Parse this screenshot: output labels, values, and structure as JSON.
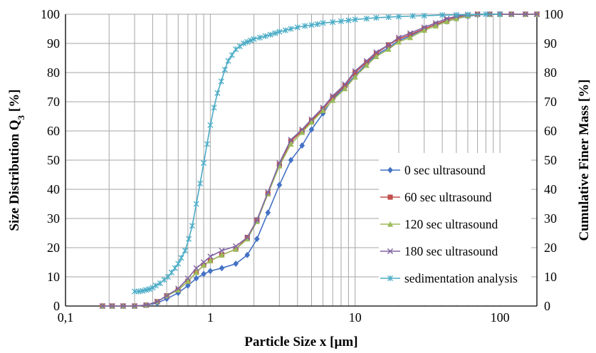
{
  "chart_data": {
    "type": "line",
    "xscale": "log",
    "xlim": [
      0.1,
      180
    ],
    "ylim": [
      0,
      100
    ],
    "grid": "on",
    "legend_position": "bottom-right",
    "xlabel": "Particle Size x [µm]",
    "ylabel_left": "Size Distribution Q",
    "ylabel_left_sub": "3",
    "ylabel_left_suffix": " [%]",
    "ylabel_right": "Cumulative Finer Mass [%]",
    "x_tick_labels": [
      "0,1",
      "1",
      "10",
      "100"
    ],
    "y_tick_labels": [
      "0",
      "10",
      "20",
      "30",
      "40",
      "50",
      "60",
      "70",
      "80",
      "90",
      "100"
    ],
    "series": [
      {
        "name": "0 sec ultrasound",
        "color": "#4472c4",
        "marker": "diamond",
        "x": [
          0.18,
          0.21,
          0.25,
          0.3,
          0.36,
          0.43,
          0.5,
          0.6,
          0.7,
          0.8,
          0.9,
          1.0,
          1.2,
          1.5,
          1.8,
          2.1,
          2.5,
          3.0,
          3.6,
          4.3,
          5.0,
          6.0,
          7.0,
          8.5,
          10,
          12,
          14,
          17,
          20,
          24,
          30,
          36,
          43,
          50,
          60,
          70,
          85,
          100,
          120,
          150,
          180
        ],
        "y": [
          0,
          0,
          0,
          0,
          0.3,
          1,
          2.5,
          4.5,
          7,
          9.5,
          11,
          12,
          13,
          14.5,
          17.5,
          23,
          32,
          41.5,
          50,
          55,
          60.5,
          66,
          71,
          75,
          79,
          83,
          86,
          88.5,
          91,
          92.5,
          95,
          96.5,
          97.5,
          98.5,
          99.3,
          99.8,
          100,
          100,
          100,
          100,
          100
        ]
      },
      {
        "name": "60 sec ultrasound",
        "color": "#c0504d",
        "marker": "square",
        "x": [
          0.18,
          0.21,
          0.25,
          0.3,
          0.36,
          0.43,
          0.5,
          0.6,
          0.7,
          0.8,
          0.9,
          1.0,
          1.2,
          1.5,
          1.8,
          2.1,
          2.5,
          3.0,
          3.6,
          4.3,
          5.0,
          6.0,
          7.0,
          8.5,
          10,
          12,
          14,
          17,
          20,
          24,
          30,
          36,
          43,
          50,
          60,
          70,
          85,
          100,
          120,
          150,
          180
        ],
        "y": [
          0,
          0,
          0,
          0,
          0.3,
          1.5,
          3.5,
          5.5,
          8.5,
          11.5,
          14,
          15.5,
          17.5,
          19.5,
          23.5,
          29.5,
          38.5,
          48.5,
          56.5,
          60,
          63.5,
          67.5,
          71.5,
          75.5,
          80,
          83.5,
          86.5,
          89.5,
          91.5,
          93,
          95,
          96.5,
          98,
          99,
          99.5,
          100,
          100,
          100,
          100,
          100,
          100
        ]
      },
      {
        "name": "120 sec ultrasound",
        "color": "#9bbb59",
        "marker": "triangle",
        "x": [
          0.18,
          0.21,
          0.25,
          0.3,
          0.36,
          0.43,
          0.5,
          0.6,
          0.7,
          0.8,
          0.9,
          1.0,
          1.2,
          1.5,
          1.8,
          2.1,
          2.5,
          3.0,
          3.6,
          4.3,
          5.0,
          6.0,
          7.0,
          8.5,
          10,
          12,
          14,
          17,
          20,
          24,
          30,
          36,
          43,
          50,
          60,
          70,
          85,
          100,
          120,
          150,
          180
        ],
        "y": [
          0,
          0,
          0,
          0,
          0.3,
          1.5,
          3.5,
          5.5,
          8.5,
          11.5,
          14,
          15.5,
          17.5,
          19.5,
          23,
          29,
          38.5,
          48,
          55.5,
          59.5,
          63,
          67,
          70.5,
          74.5,
          78.5,
          82.5,
          85.5,
          88,
          90.5,
          92,
          94.5,
          96,
          97.5,
          98.5,
          99.5,
          100,
          100,
          100,
          100,
          100,
          100
        ]
      },
      {
        "name": "180 sec ultrasound",
        "color": "#8064a2",
        "marker": "x",
        "x": [
          0.18,
          0.21,
          0.25,
          0.3,
          0.36,
          0.43,
          0.5,
          0.6,
          0.7,
          0.8,
          0.9,
          1.0,
          1.2,
          1.5,
          1.8,
          2.1,
          2.5,
          3.0,
          3.6,
          4.3,
          5.0,
          6.0,
          7.0,
          8.5,
          10,
          12,
          14,
          17,
          20,
          24,
          30,
          36,
          43,
          50,
          60,
          70,
          85,
          100,
          120,
          150,
          180
        ],
        "y": [
          0,
          0,
          0,
          0,
          0.3,
          1.5,
          3.5,
          6,
          9.5,
          13,
          15,
          17,
          19,
          20.5,
          23.5,
          29.5,
          39,
          49,
          57,
          60.5,
          64,
          68,
          72,
          76,
          80.5,
          84,
          87,
          89.5,
          92,
          93.5,
          95.5,
          97,
          98.5,
          99.3,
          99.8,
          100,
          100,
          100,
          100,
          100,
          100
        ]
      },
      {
        "name": "sedimentation analysis",
        "color": "#4bacc6",
        "marker": "star",
        "x": [
          0.3,
          0.32,
          0.34,
          0.36,
          0.38,
          0.4,
          0.42,
          0.45,
          0.48,
          0.51,
          0.54,
          0.57,
          0.6,
          0.63,
          0.67,
          0.71,
          0.75,
          0.8,
          0.85,
          0.9,
          0.95,
          1.0,
          1.06,
          1.12,
          1.19,
          1.26,
          1.33,
          1.41,
          1.5,
          1.6,
          1.7,
          1.8,
          1.9,
          2.0,
          2.2,
          2.4,
          2.6,
          2.8,
          3.0,
          3.3,
          3.6,
          4.0,
          4.5,
          5.0,
          5.5,
          6.0,
          7.0,
          8.0,
          9.0,
          10,
          12,
          14,
          17,
          20,
          25,
          30,
          40,
          50,
          60,
          80,
          100
        ],
        "y": [
          5,
          5,
          5.2,
          5.5,
          5.8,
          6.3,
          7,
          7.8,
          9,
          10,
          11.5,
          13,
          14.5,
          16.5,
          19,
          23,
          27.5,
          35,
          42,
          49,
          55.5,
          62,
          68,
          73,
          77,
          81,
          84,
          86,
          88,
          89,
          90,
          90.5,
          91,
          91.5,
          92,
          92.5,
          93,
          93.5,
          94,
          94.5,
          95,
          95.5,
          96,
          96.3,
          96.6,
          97,
          97.3,
          97.6,
          97.9,
          98.2,
          98.5,
          98.8,
          99,
          99.2,
          99.4,
          99.5,
          99.7,
          99.8,
          99.9,
          100,
          100
        ]
      }
    ]
  }
}
